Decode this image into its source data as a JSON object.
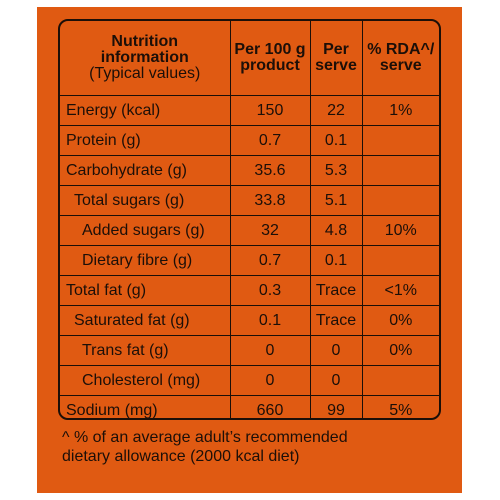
{
  "header": {
    "title_line1": "Nutrition",
    "title_line2": "information",
    "title_line3": "(Typical values)",
    "col_per100": "Per 100 g product",
    "col_per100_line1": "Per 100 g",
    "col_per100_line2": "product",
    "col_serve_line1": "Per",
    "col_serve_line2": "serve",
    "col_rda_line1": "% RDA^/",
    "col_rda_line2": "serve"
  },
  "rows": [
    {
      "label": "Energy (kcal)",
      "per100": "150",
      "serve": "22",
      "rda": "1%"
    },
    {
      "label": "Protein (g)",
      "per100": "0.7",
      "serve": "0.1",
      "rda": ""
    },
    {
      "label": "Carbohydrate (g)",
      "per100": "35.6",
      "serve": "5.3",
      "rda": ""
    },
    {
      "label": "Total sugars (g)",
      "per100": "33.8",
      "serve": "5.1",
      "rda": ""
    },
    {
      "label": "Added sugars (g)",
      "per100": "32",
      "serve": "4.8",
      "rda": "10%"
    },
    {
      "label": "Dietary fibre (g)",
      "per100": "0.7",
      "serve": "0.1",
      "rda": ""
    },
    {
      "label": "Total fat (g)",
      "per100": "0.3",
      "serve": "Trace",
      "rda": "<1%"
    },
    {
      "label": "Saturated fat (g)",
      "per100": "0.1",
      "serve": "Trace",
      "rda": "0%"
    },
    {
      "label": "Trans fat (g)",
      "per100": "0",
      "serve": "0",
      "rda": "0%"
    },
    {
      "label": "Cholesterol (mg)",
      "per100": "0",
      "serve": "0",
      "rda": ""
    },
    {
      "label": "Sodium (mg)",
      "per100": "660",
      "serve": "99",
      "rda": "5%"
    }
  ],
  "footnote": {
    "line1": "^ % of an average adult’s recommended",
    "line2": "dietary allowance (2000 kcal diet)"
  },
  "colors": {
    "background": "#e05a12",
    "ink": "#1c0f08"
  }
}
